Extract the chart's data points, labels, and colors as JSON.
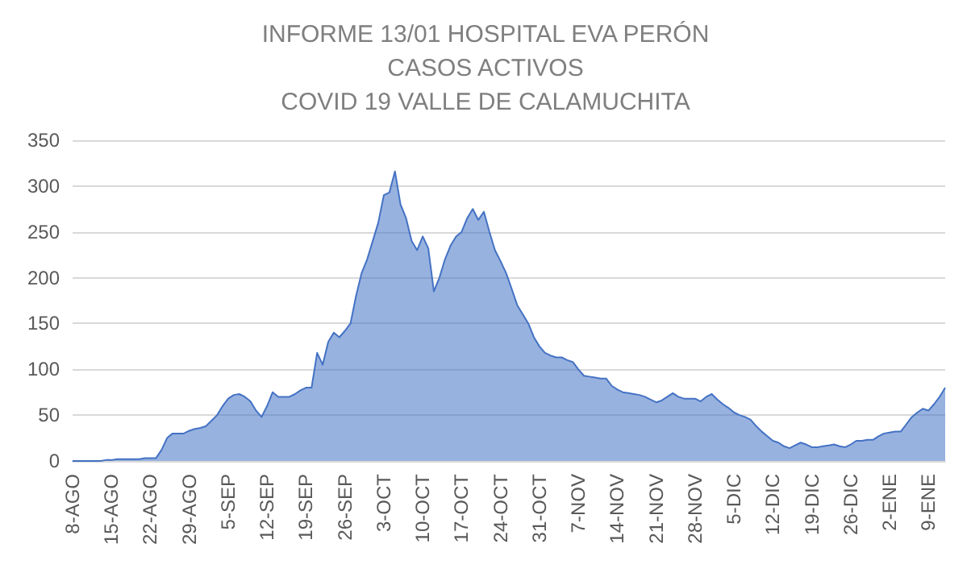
{
  "chart_data": {
    "type": "area",
    "title": "INFORME 13/01 HOSPITAL EVA PERÓN\nCASOS ACTIVOS\nCOVID 19 VALLE DE CALAMUCHITA",
    "categories": [
      "8-AGO",
      null,
      null,
      null,
      null,
      null,
      null,
      "15-AGO",
      null,
      null,
      null,
      null,
      null,
      null,
      "22-AGO",
      null,
      null,
      null,
      null,
      null,
      null,
      "29-AGO",
      null,
      null,
      null,
      null,
      null,
      null,
      "5-SEP",
      null,
      null,
      null,
      null,
      null,
      null,
      "12-SEP",
      null,
      null,
      null,
      null,
      null,
      null,
      "19-SEP",
      null,
      null,
      null,
      null,
      null,
      null,
      "26-SEP",
      null,
      null,
      null,
      null,
      null,
      null,
      "3-OCT",
      null,
      null,
      null,
      null,
      null,
      null,
      "10-OCT",
      null,
      null,
      null,
      null,
      null,
      null,
      "17-OCT",
      null,
      null,
      null,
      null,
      null,
      null,
      "24-OCT",
      null,
      null,
      null,
      null,
      null,
      null,
      "31-OCT",
      null,
      null,
      null,
      null,
      null,
      null,
      "7-NOV",
      null,
      null,
      null,
      null,
      null,
      null,
      "14-NOV",
      null,
      null,
      null,
      null,
      null,
      null,
      "21-NOV",
      null,
      null,
      null,
      null,
      null,
      null,
      "28-NOV",
      null,
      null,
      null,
      null,
      null,
      null,
      "5-DIC",
      null,
      null,
      null,
      null,
      null,
      null,
      "12-DIC",
      null,
      null,
      null,
      null,
      null,
      null,
      "19-DIC",
      null,
      null,
      null,
      null,
      null,
      null,
      "26-DIC",
      null,
      null,
      null,
      null,
      null,
      null,
      "2-ENE",
      null,
      null,
      null,
      null,
      null,
      null,
      "9-ENE",
      null,
      null,
      null
    ],
    "values": [
      0,
      0,
      0,
      0,
      0,
      0,
      1,
      1,
      2,
      2,
      2,
      2,
      2,
      3,
      3,
      3,
      12,
      25,
      30,
      30,
      30,
      33,
      35,
      36,
      38,
      44,
      50,
      60,
      68,
      72,
      73,
      70,
      65,
      55,
      48,
      60,
      75,
      70,
      70,
      70,
      73,
      77,
      80,
      80,
      118,
      105,
      130,
      140,
      135,
      142,
      150,
      180,
      205,
      220,
      240,
      260,
      290,
      293,
      316,
      280,
      265,
      240,
      230,
      245,
      232,
      185,
      200,
      220,
      235,
      245,
      250,
      265,
      275,
      263,
      272,
      250,
      230,
      218,
      205,
      188,
      170,
      160,
      150,
      135,
      125,
      118,
      115,
      113,
      113,
      110,
      108,
      100,
      93,
      92,
      91,
      90,
      90,
      82,
      78,
      75,
      74,
      73,
      72,
      70,
      67,
      64,
      66,
      70,
      74,
      70,
      68,
      68,
      68,
      65,
      70,
      73,
      67,
      62,
      58,
      53,
      50,
      48,
      45,
      38,
      32,
      27,
      22,
      20,
      16,
      14,
      17,
      20,
      18,
      15,
      15,
      16,
      17,
      18,
      16,
      15,
      18,
      22,
      22,
      23,
      23,
      27,
      30,
      31,
      32,
      32,
      40,
      48,
      53,
      57,
      55,
      62,
      70,
      80
    ],
    "color": "#4472c4",
    "ylim": [
      0,
      350
    ],
    "yticks": [
      0,
      50,
      100,
      150,
      200,
      250,
      300,
      350
    ],
    "grid": true
  }
}
